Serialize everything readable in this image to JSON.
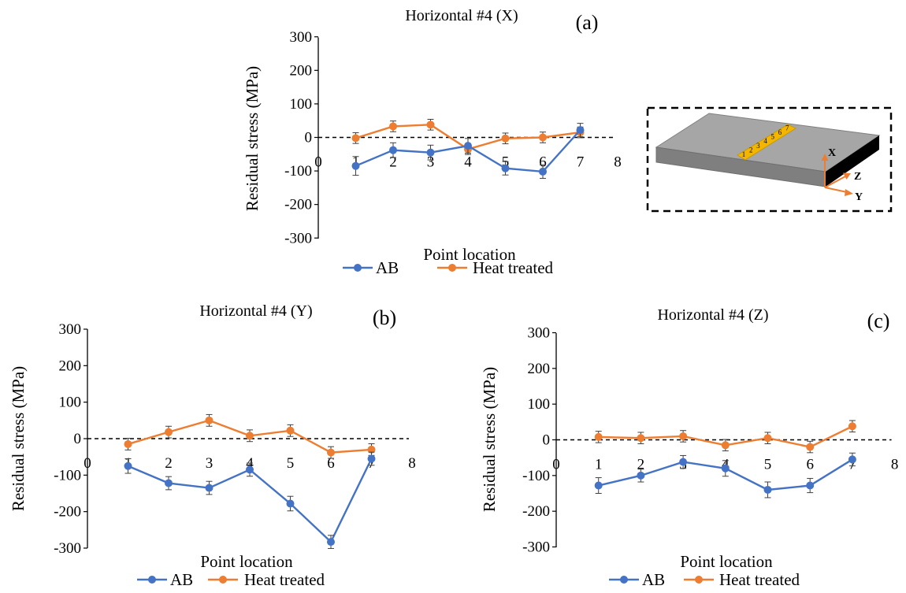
{
  "colors": {
    "ab": "#4472C4",
    "heat": "#ED7D31",
    "axis": "#000000",
    "zero_line": "#000000"
  },
  "inset": {
    "point_labels": [
      "1",
      "2",
      "3",
      "4",
      "5",
      "6",
      "7"
    ],
    "axis_labels": {
      "x": "X",
      "z": "Z",
      "y": "Y"
    }
  },
  "chart_data": [
    {
      "type": "line",
      "title": "Horizontal #4 (X)",
      "panel_label": "(a)",
      "xlabel": "Point location",
      "ylabel": "Residual stress (MPa)",
      "xlim": [
        0,
        8
      ],
      "ylim": [
        -300,
        300
      ],
      "x_ticks": [
        "0",
        "1",
        "2",
        "3",
        "4",
        "5",
        "6",
        "7",
        "8"
      ],
      "y_ticks": [
        "300",
        "200",
        "100",
        "0",
        "-100",
        "-200",
        "-300"
      ],
      "grid": false,
      "legend_position": "bottom",
      "x": [
        1,
        2,
        3,
        4,
        5,
        6,
        7
      ],
      "series": [
        {
          "name": "AB",
          "values": [
            -85,
            -38,
            -45,
            -25,
            -92,
            -102,
            22
          ],
          "error": [
            28,
            22,
            22,
            22,
            20,
            20,
            20
          ]
        },
        {
          "name": "Heat treated",
          "values": [
            -2,
            33,
            38,
            -35,
            -3,
            0,
            15
          ],
          "error": [
            16,
            16,
            16,
            16,
            16,
            16,
            16
          ]
        }
      ]
    },
    {
      "type": "line",
      "title": "Horizontal #4 (Y)",
      "panel_label": "(b)",
      "xlabel": "Point location",
      "ylabel": "Residual stress (MPa)",
      "xlim": [
        0,
        8
      ],
      "ylim": [
        -300,
        300
      ],
      "x_ticks": [
        "0",
        "1",
        "2",
        "3",
        "4",
        "5",
        "6",
        "7",
        "8"
      ],
      "y_ticks": [
        "300",
        "200",
        "100",
        "0",
        "-100",
        "-200",
        "-300"
      ],
      "grid": false,
      "legend_position": "bottom",
      "x": [
        1,
        2,
        3,
        4,
        5,
        6,
        7
      ],
      "series": [
        {
          "name": "AB",
          "values": [
            -75,
            -122,
            -135,
            -85,
            -178,
            -283,
            -55
          ],
          "error": [
            20,
            18,
            18,
            18,
            20,
            18,
            18
          ]
        },
        {
          "name": "Heat treated",
          "values": [
            -15,
            18,
            50,
            8,
            22,
            -38,
            -30
          ],
          "error": [
            16,
            16,
            16,
            16,
            16,
            16,
            16
          ]
        }
      ]
    },
    {
      "type": "line",
      "title": "Horizontal #4 (Z)",
      "panel_label": "(c)",
      "xlabel": "Point location",
      "ylabel": "Residual stress (MPa)",
      "xlim": [
        0,
        8
      ],
      "ylim": [
        -300,
        300
      ],
      "x_ticks": [
        "0",
        "1",
        "2",
        "3",
        "4",
        "5",
        "6",
        "7",
        "8"
      ],
      "y_ticks": [
        "300",
        "200",
        "100",
        "0",
        "-100",
        "-200",
        "-300"
      ],
      "grid": false,
      "legend_position": "bottom",
      "x": [
        1,
        2,
        3,
        4,
        5,
        6,
        7
      ],
      "series": [
        {
          "name": "AB",
          "values": [
            -128,
            -100,
            -62,
            -80,
            -140,
            -128,
            -55
          ],
          "error": [
            22,
            18,
            18,
            22,
            22,
            20,
            18
          ]
        },
        {
          "name": "Heat treated",
          "values": [
            8,
            5,
            10,
            -15,
            5,
            -20,
            38
          ],
          "error": [
            16,
            16,
            16,
            16,
            16,
            16,
            16
          ]
        }
      ]
    }
  ]
}
